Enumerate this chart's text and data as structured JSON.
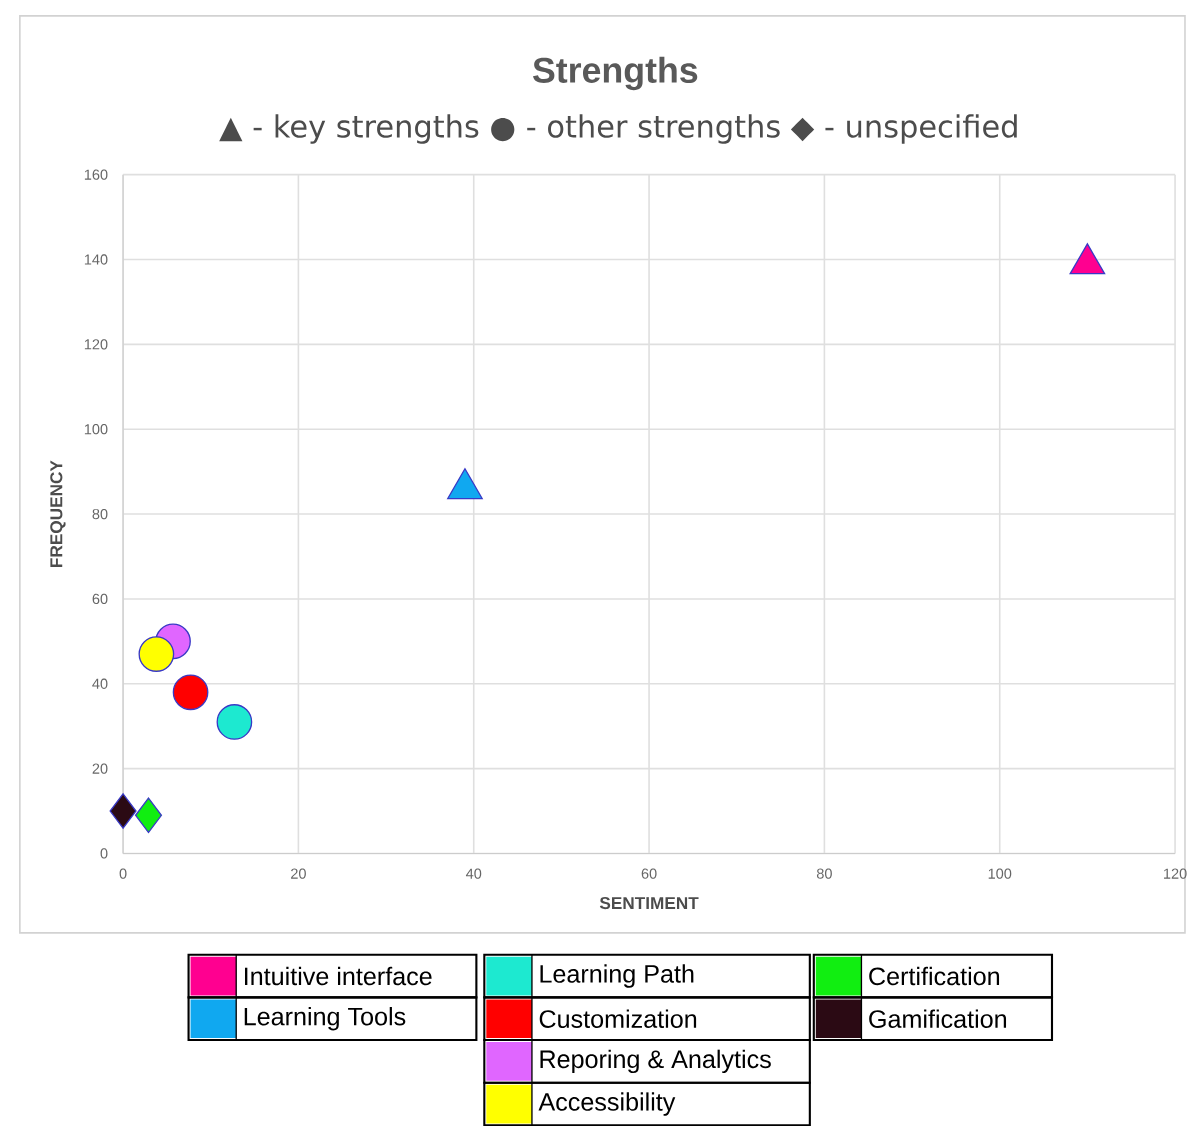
{
  "chart_data": {
    "type": "scatter",
    "title": "Strengths",
    "subtitle": "▲ - key strengths ● - other strengths ◆ - unspecified",
    "xlabel": "SENTIMENT",
    "ylabel": "FREQUENCY",
    "xlim": [
      0,
      120
    ],
    "ylim": [
      0,
      160
    ],
    "xticks": [
      0,
      20,
      40,
      60,
      80,
      100,
      120
    ],
    "yticks": [
      0,
      20,
      40,
      60,
      80,
      100,
      120,
      140,
      160
    ],
    "grid": true,
    "legend": "bottom",
    "series": [
      {
        "name": "Intuitive interface",
        "color": "#ff0090",
        "marker": "triangle",
        "x": [
          110
        ],
        "values": [
          139
        ]
      },
      {
        "name": "Learning Tools",
        "color": "#10a8f0",
        "marker": "triangle",
        "x": [
          39
        ],
        "values": [
          86
        ]
      },
      {
        "name": "Learning Path",
        "color": "#1de9d0",
        "marker": "circle",
        "x": [
          12.7
        ],
        "values": [
          31
        ]
      },
      {
        "name": "Customization",
        "color": "#ff0000",
        "marker": "circle",
        "x": [
          7.7
        ],
        "values": [
          38
        ]
      },
      {
        "name": "Reporing & Analytics",
        "color": "#e066ff",
        "marker": "circle",
        "x": [
          5.7
        ],
        "values": [
          50
        ]
      },
      {
        "name": "Accessibility",
        "color": "#ffff00",
        "marker": "circle",
        "x": [
          3.8
        ],
        "values": [
          47
        ]
      },
      {
        "name": "Certification",
        "color": "#11ee11",
        "marker": "diamond",
        "x": [
          2.9
        ],
        "values": [
          9
        ]
      },
      {
        "name": "Gamification",
        "color": "#2b0a14",
        "marker": "diamond",
        "x": [
          0
        ],
        "values": [
          10
        ]
      }
    ]
  }
}
